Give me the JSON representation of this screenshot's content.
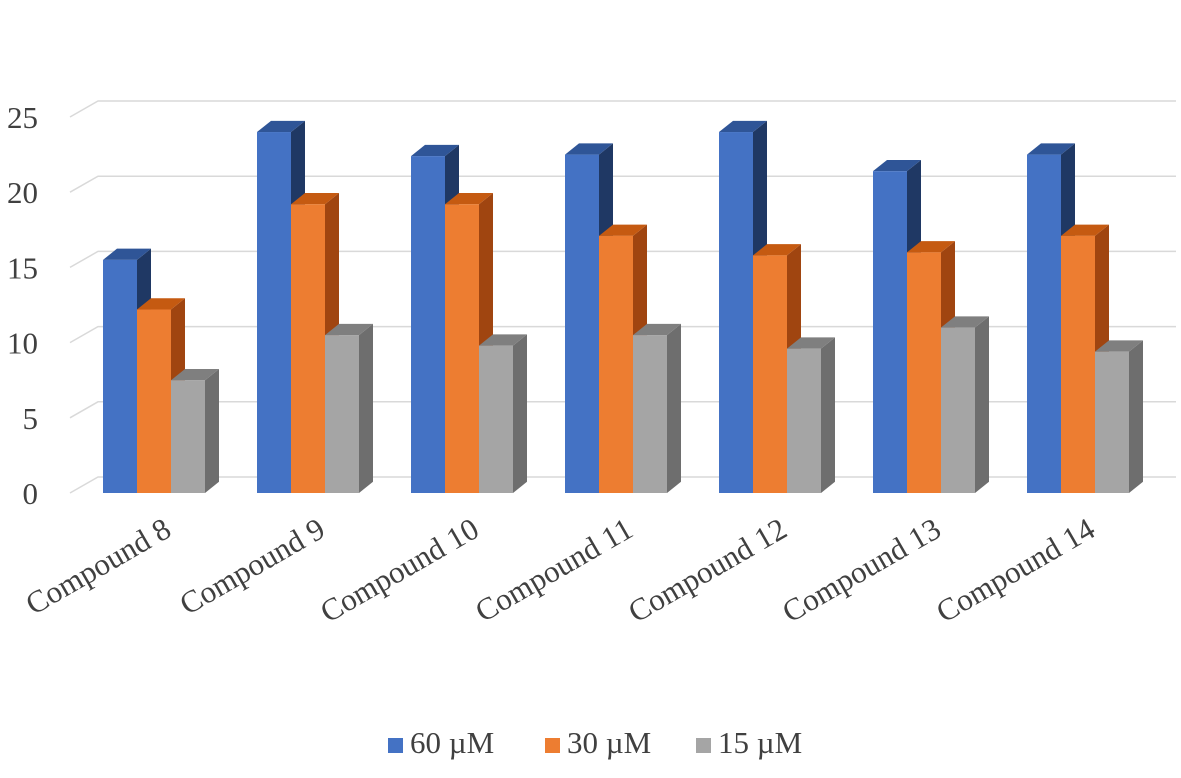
{
  "chart_data": {
    "type": "bar",
    "title": "",
    "xlabel": "",
    "ylabel": "",
    "ylim": [
      0,
      25
    ],
    "yticks": [
      "0",
      "5",
      "10",
      "15",
      "20",
      "25"
    ],
    "grid": true,
    "legend_position": "bottom",
    "categories": [
      "Compound 8",
      "Compound 9",
      "Compound 10",
      "Compound 11",
      "Compound 12",
      "Compound 13",
      "Compound 14"
    ],
    "series": [
      {
        "name": "60 µM",
        "color": "#4472c4",
        "top_color": "#2f5597",
        "side_color": "#1f3864",
        "values": [
          15.5,
          24.0,
          22.4,
          22.5,
          24.0,
          21.4,
          22.5
        ]
      },
      {
        "name": "30 µM",
        "color": "#ed7d31",
        "top_color": "#c55a11",
        "side_color": "#a04510",
        "values": [
          12.2,
          19.2,
          19.2,
          17.1,
          15.8,
          16.0,
          17.1
        ]
      },
      {
        "name": "15 µM",
        "color": "#a5a5a5",
        "top_color": "#7f7f7f",
        "side_color": "#6e6e6e",
        "values": [
          7.5,
          10.5,
          9.8,
          10.5,
          9.6,
          11.0,
          9.4
        ]
      }
    ]
  }
}
